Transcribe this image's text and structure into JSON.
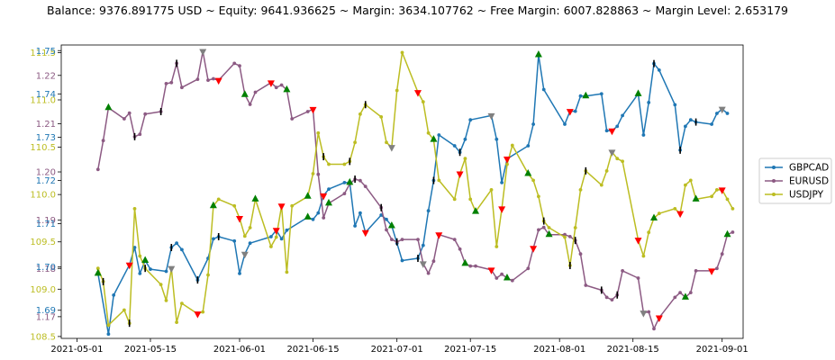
{
  "header": {
    "title": "Balance: 9376.891775 USD ~ Equity: 9641.936625 ~ Margin: 3634.107762 ~ Free Margin: 6007.828863 ~ Margin Level: 2.653179"
  },
  "colors": {
    "gbpcad": "#1f77b4",
    "eurusd": "#8c5a83",
    "usdjpy": "#bcbd22",
    "buy_marker": "#008000",
    "sell_marker": "#ff0000",
    "neutral_marker": "#808080",
    "close_marker": "#000000"
  },
  "chart_data": {
    "type": "line",
    "title": "",
    "xlabel": "",
    "ylabel": "",
    "x_ticks": [
      "2021-05-01",
      "2021-05-15",
      "2021-06-01",
      "2021-06-15",
      "2021-07-01",
      "2021-07-15",
      "2021-08-01",
      "2021-08-15",
      "2021-09-01"
    ],
    "xlim": [
      "2021-04-28",
      "2021-09-05"
    ],
    "axes": {
      "usdjpy": {
        "ticks": [
          "108.5",
          "109.0",
          "109.5",
          "110.0",
          "110.5",
          "111.0",
          "111.5"
        ],
        "ylim": [
          108.48,
          111.58
        ]
      },
      "eurusd": {
        "ticks": [
          "1.17",
          "1.18",
          "1.19",
          "1.20",
          "1.21",
          "1.22"
        ],
        "ylim": [
          1.1655,
          1.2263
        ]
      },
      "gbpcad": {
        "ticks": [
          "1.69",
          "1.70",
          "1.71",
          "1.72",
          "1.73",
          "1.74",
          "1.75"
        ],
        "ylim": [
          1.6835,
          1.7513
        ]
      }
    },
    "legend": {
      "position": "right",
      "entries": [
        "GBPCAD",
        "EURUSD",
        "USDJPY"
      ]
    },
    "series": [
      {
        "name": "GBPCAD",
        "axis": "gbpcad",
        "x": [
          "2021-05-05",
          "2021-05-07",
          "2021-05-08",
          "2021-05-11",
          "2021-05-12",
          "2021-05-13",
          "2021-05-14",
          "2021-05-15",
          "2021-05-18",
          "2021-05-19",
          "2021-05-20",
          "2021-05-21",
          "2021-05-24",
          "2021-05-26",
          "2021-05-27",
          "2021-05-28",
          "2021-05-31",
          "2021-06-01",
          "2021-06-02",
          "2021-06-03",
          "2021-06-07",
          "2021-06-08",
          "2021-06-09",
          "2021-06-10",
          "2021-06-14",
          "2021-06-15",
          "2021-06-16",
          "2021-06-17",
          "2021-06-18",
          "2021-06-21",
          "2021-06-22",
          "2021-06-23",
          "2021-06-24",
          "2021-06-25",
          "2021-06-28",
          "2021-06-29",
          "2021-06-30",
          "2021-07-01",
          "2021-07-02",
          "2021-07-05",
          "2021-07-06",
          "2021-07-07",
          "2021-07-08",
          "2021-07-09",
          "2021-07-12",
          "2021-07-13",
          "2021-07-14",
          "2021-07-15",
          "2021-07-19",
          "2021-07-20",
          "2021-07-21",
          "2021-07-22",
          "2021-07-26",
          "2021-07-27",
          "2021-07-28",
          "2021-07-29",
          "2021-08-02",
          "2021-08-03",
          "2021-08-04",
          "2021-08-05",
          "2021-08-06",
          "2021-08-09",
          "2021-08-10",
          "2021-08-11",
          "2021-08-12",
          "2021-08-13",
          "2021-08-16",
          "2021-08-17",
          "2021-08-18",
          "2021-08-19",
          "2021-08-20",
          "2021-08-23",
          "2021-08-24",
          "2021-08-25",
          "2021-08-26",
          "2021-08-27",
          "2021-08-30",
          "2021-08-31",
          "2021-09-01",
          "2021-09-02"
        ],
        "values": [
          1.6985,
          1.6845,
          1.6935,
          1.7005,
          1.7045,
          1.6985,
          1.7015,
          1.6995,
          1.699,
          1.7045,
          1.7055,
          1.704,
          1.697,
          1.702,
          1.7065,
          1.707,
          1.706,
          1.6985,
          1.703,
          1.7055,
          1.707,
          1.7085,
          1.7065,
          1.7085,
          1.7115,
          1.711,
          1.7125,
          1.7165,
          1.718,
          1.7195,
          1.7195,
          1.7095,
          1.7125,
          1.708,
          1.712,
          1.711,
          1.7095,
          1.7055,
          1.7015,
          1.702,
          1.705,
          1.713,
          1.72,
          1.7305,
          1.728,
          1.7265,
          1.7295,
          1.734,
          1.735,
          1.7295,
          1.7195,
          1.725,
          1.728,
          1.733,
          1.749,
          1.741,
          1.733,
          1.736,
          1.736,
          1.7395,
          1.7395,
          1.74,
          1.7315,
          1.7315,
          1.7325,
          1.735,
          1.74,
          1.7305,
          1.738,
          1.747,
          1.7455,
          1.7375,
          1.727,
          1.7325,
          1.734,
          1.7335,
          1.733,
          1.7355,
          1.7365,
          1.7355
        ]
      },
      {
        "name": "EURUSD",
        "axis": "eurusd",
        "x": [
          "2021-05-05",
          "2021-05-06",
          "2021-05-07",
          "2021-05-10",
          "2021-05-11",
          "2021-05-12",
          "2021-05-13",
          "2021-05-14",
          "2021-05-17",
          "2021-05-18",
          "2021-05-19",
          "2021-05-20",
          "2021-05-21",
          "2021-05-24",
          "2021-05-25",
          "2021-05-26",
          "2021-05-27",
          "2021-05-28",
          "2021-05-31",
          "2021-06-01",
          "2021-06-02",
          "2021-06-03",
          "2021-06-04",
          "2021-06-07",
          "2021-06-08",
          "2021-06-09",
          "2021-06-10",
          "2021-06-11",
          "2021-06-14",
          "2021-06-15",
          "2021-06-16",
          "2021-06-17",
          "2021-06-18",
          "2021-06-21",
          "2021-06-22",
          "2021-06-23",
          "2021-06-24",
          "2021-06-25",
          "2021-06-28",
          "2021-06-29",
          "2021-06-30",
          "2021-07-01",
          "2021-07-02",
          "2021-07-05",
          "2021-07-06",
          "2021-07-07",
          "2021-07-08",
          "2021-07-09",
          "2021-07-12",
          "2021-07-13",
          "2021-07-14",
          "2021-07-15",
          "2021-07-16",
          "2021-07-19",
          "2021-07-20",
          "2021-07-21",
          "2021-07-22",
          "2021-07-23",
          "2021-07-26",
          "2021-07-27",
          "2021-07-28",
          "2021-07-29",
          "2021-07-30",
          "2021-08-02",
          "2021-08-03",
          "2021-08-04",
          "2021-08-05",
          "2021-08-06",
          "2021-08-09",
          "2021-08-10",
          "2021-08-11",
          "2021-08-12",
          "2021-08-13",
          "2021-08-16",
          "2021-08-17",
          "2021-08-18",
          "2021-08-19",
          "2021-08-20",
          "2021-08-23",
          "2021-08-24",
          "2021-08-25",
          "2021-08-26",
          "2021-08-27",
          "2021-08-30",
          "2021-08-31",
          "2021-09-01",
          "2021-09-02",
          "2021-09-03"
        ],
        "values": [
          1.2005,
          1.2065,
          1.2133,
          1.211,
          1.2122,
          1.2073,
          1.2078,
          1.212,
          1.2125,
          1.2183,
          1.2185,
          1.2225,
          1.2175,
          1.2192,
          1.225,
          1.219,
          1.2193,
          1.219,
          1.2225,
          1.222,
          1.216,
          1.214,
          1.2165,
          1.2185,
          1.2175,
          1.218,
          1.217,
          1.211,
          1.2125,
          1.213,
          1.1995,
          1.1905,
          1.1935,
          1.1955,
          1.1975,
          1.1985,
          1.1982,
          1.197,
          1.1926,
          1.188,
          1.186,
          1.1855,
          1.186,
          1.186,
          1.181,
          1.179,
          1.1815,
          1.187,
          1.186,
          1.184,
          1.181,
          1.1805,
          1.1805,
          1.1797,
          1.178,
          1.1788,
          1.178,
          1.1775,
          1.18,
          1.1842,
          1.188,
          1.1885,
          1.187,
          1.187,
          1.1866,
          1.1858,
          1.183,
          1.1765,
          1.1755,
          1.174,
          1.1735,
          1.1745,
          1.1795,
          1.178,
          1.1708,
          1.171,
          1.1675,
          1.1698,
          1.174,
          1.175,
          1.174,
          1.175,
          1.1795,
          1.1795,
          1.18,
          1.183,
          1.187,
          1.1875
        ]
      },
      {
        "name": "USDJPY",
        "axis": "usdjpy",
        "x": [
          "2021-05-05",
          "2021-05-06",
          "2021-05-07",
          "2021-05-10",
          "2021-05-11",
          "2021-05-12",
          "2021-05-13",
          "2021-05-14",
          "2021-05-17",
          "2021-05-18",
          "2021-05-19",
          "2021-05-20",
          "2021-05-21",
          "2021-05-24",
          "2021-05-25",
          "2021-05-26",
          "2021-05-27",
          "2021-05-28",
          "2021-05-31",
          "2021-06-01",
          "2021-06-02",
          "2021-06-03",
          "2021-06-04",
          "2021-06-07",
          "2021-06-08",
          "2021-06-09",
          "2021-06-10",
          "2021-06-11",
          "2021-06-14",
          "2021-06-15",
          "2021-06-16",
          "2021-06-17",
          "2021-06-18",
          "2021-06-21",
          "2021-06-22",
          "2021-06-23",
          "2021-06-24",
          "2021-06-25",
          "2021-06-28",
          "2021-06-29",
          "2021-06-30",
          "2021-07-01",
          "2021-07-02",
          "2021-07-05",
          "2021-07-06",
          "2021-07-07",
          "2021-07-08",
          "2021-07-09",
          "2021-07-12",
          "2021-07-13",
          "2021-07-14",
          "2021-07-15",
          "2021-07-16",
          "2021-07-19",
          "2021-07-20",
          "2021-07-21",
          "2021-07-22",
          "2021-07-23",
          "2021-07-26",
          "2021-07-27",
          "2021-07-28",
          "2021-07-29",
          "2021-07-30",
          "2021-08-02",
          "2021-08-03",
          "2021-08-04",
          "2021-08-05",
          "2021-08-06",
          "2021-08-09",
          "2021-08-10",
          "2021-08-11",
          "2021-08-12",
          "2021-08-13",
          "2021-08-16",
          "2021-08-17",
          "2021-08-18",
          "2021-08-19",
          "2021-08-20",
          "2021-08-23",
          "2021-08-24",
          "2021-08-25",
          "2021-08-26",
          "2021-08-27",
          "2021-08-30",
          "2021-08-31",
          "2021-09-01",
          "2021-09-02",
          "2021-09-03"
        ],
        "values": [
          109.22,
          109.08,
          108.62,
          108.78,
          108.64,
          109.85,
          109.35,
          109.22,
          109.05,
          108.88,
          109.22,
          108.65,
          108.85,
          108.74,
          108.76,
          109.15,
          109.88,
          109.95,
          109.88,
          109.75,
          109.56,
          109.65,
          109.95,
          109.45,
          109.55,
          109.88,
          109.18,
          109.88,
          109.98,
          110.22,
          110.65,
          110.4,
          110.32,
          110.32,
          110.35,
          110.55,
          110.85,
          110.95,
          110.82,
          110.55,
          110.5,
          111.1,
          111.5,
          111.08,
          110.98,
          110.65,
          110.58,
          110.15,
          109.95,
          110.22,
          110.38,
          109.95,
          109.82,
          110.05,
          109.45,
          109.85,
          110.32,
          110.52,
          110.22,
          110.15,
          109.98,
          109.72,
          109.65,
          109.55,
          109.25,
          109.65,
          110.05,
          110.25,
          110.1,
          110.25,
          110.45,
          110.38,
          110.35,
          109.52,
          109.35,
          109.6,
          109.75,
          109.8,
          109.85,
          109.8,
          110.1,
          110.15,
          109.95,
          109.98,
          110.05,
          110.05,
          109.95,
          109.85
        ]
      }
    ]
  },
  "legend_items": [
    "GBPCAD",
    "EURUSD",
    "USDJPY"
  ]
}
